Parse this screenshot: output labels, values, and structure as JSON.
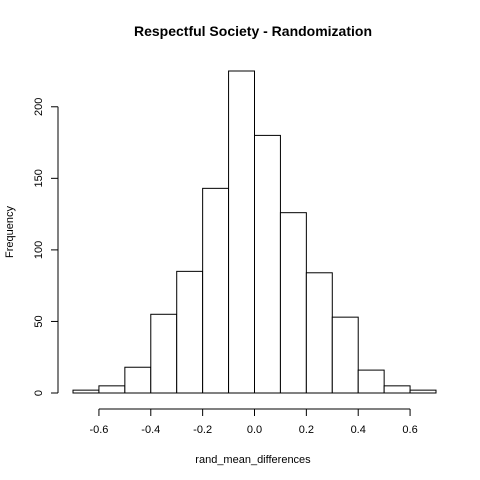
{
  "chart_data": {
    "type": "bar",
    "subtype": "histogram",
    "title": "Respectful Society - Randomization",
    "xlabel": "rand_mean_differences",
    "ylabel": "Frequency",
    "bin_edges": [
      -0.7,
      -0.6,
      -0.5,
      -0.4,
      -0.3,
      -0.2,
      -0.1,
      0.0,
      0.1,
      0.2,
      0.3,
      0.4,
      0.5,
      0.6,
      0.7
    ],
    "values": [
      2,
      5,
      18,
      55,
      85,
      143,
      225,
      180,
      126,
      84,
      53,
      16,
      5,
      2
    ],
    "xlim": [
      -0.7,
      0.7
    ],
    "ylim": [
      0,
      225
    ],
    "x_ticks": [
      -0.6,
      -0.4,
      -0.2,
      0.0,
      0.2,
      0.4,
      0.6
    ],
    "x_tick_labels": [
      "-0.6",
      "-0.4",
      "-0.2",
      "0.0",
      "0.2",
      "0.4",
      "0.6"
    ],
    "y_ticks": [
      0,
      50,
      100,
      150,
      200
    ],
    "y_tick_labels": [
      "0",
      "50",
      "100",
      "150",
      "200"
    ],
    "bar_fill": "#ffffff",
    "bar_stroke": "#000000",
    "grid": false,
    "legend": "none"
  }
}
